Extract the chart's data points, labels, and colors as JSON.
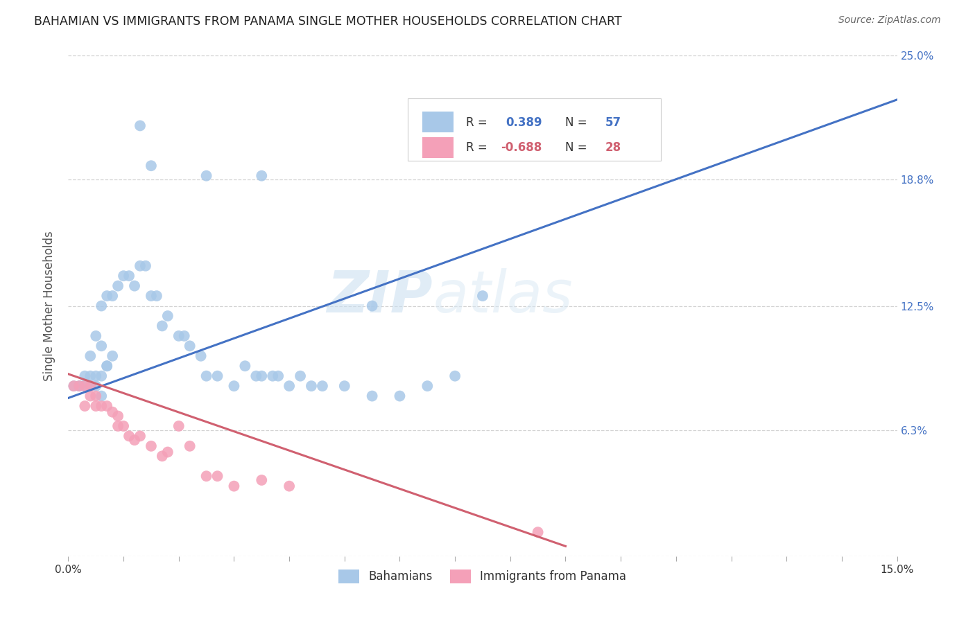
{
  "title": "BAHAMIAN VS IMMIGRANTS FROM PANAMA SINGLE MOTHER HOUSEHOLDS CORRELATION CHART",
  "source": "Source: ZipAtlas.com",
  "ylabel": "Single Mother Households",
  "legend_label1": "Bahamians",
  "legend_label2": "Immigrants from Panama",
  "r1": "0.389",
  "n1": "57",
  "r2": "-0.688",
  "n2": "28",
  "xlim": [
    0.0,
    0.15
  ],
  "ylim": [
    0.0,
    0.25
  ],
  "color_blue": "#a8c8e8",
  "color_pink": "#f4a0b8",
  "line_blue": "#4472c4",
  "line_pink": "#d06070",
  "background_color": "#ffffff",
  "grid_color": "#c8c8c8",
  "watermark_zip": "ZIP",
  "watermark_atlas": "atlas",
  "blue_line_x": [
    0.0,
    0.15
  ],
  "blue_line_y": [
    0.079,
    0.228
  ],
  "pink_line_x": [
    0.0,
    0.09
  ],
  "pink_line_y": [
    0.091,
    0.005
  ],
  "bahamian_x": [
    0.013,
    0.002,
    0.003,
    0.004,
    0.005,
    0.006,
    0.004,
    0.007,
    0.005,
    0.006,
    0.006,
    0.007,
    0.008,
    0.009,
    0.01,
    0.011,
    0.012,
    0.013,
    0.014,
    0.015,
    0.016,
    0.017,
    0.018,
    0.02,
    0.021,
    0.022,
    0.024,
    0.025,
    0.027,
    0.03,
    0.032,
    0.034,
    0.035,
    0.037,
    0.038,
    0.04,
    0.042,
    0.044,
    0.046,
    0.05,
    0.055,
    0.06,
    0.065,
    0.07,
    0.001,
    0.002,
    0.003,
    0.004,
    0.005,
    0.006,
    0.007,
    0.008,
    0.015,
    0.025,
    0.035,
    0.055,
    0.075
  ],
  "bahamian_y": [
    0.215,
    0.085,
    0.09,
    0.09,
    0.09,
    0.08,
    0.1,
    0.095,
    0.11,
    0.105,
    0.125,
    0.13,
    0.13,
    0.135,
    0.14,
    0.14,
    0.135,
    0.145,
    0.145,
    0.13,
    0.13,
    0.115,
    0.12,
    0.11,
    0.11,
    0.105,
    0.1,
    0.09,
    0.09,
    0.085,
    0.095,
    0.09,
    0.09,
    0.09,
    0.09,
    0.085,
    0.09,
    0.085,
    0.085,
    0.085,
    0.08,
    0.08,
    0.085,
    0.09,
    0.085,
    0.085,
    0.085,
    0.085,
    0.085,
    0.09,
    0.095,
    0.1,
    0.195,
    0.19,
    0.19,
    0.125,
    0.13
  ],
  "panama_x": [
    0.001,
    0.002,
    0.003,
    0.004,
    0.003,
    0.004,
    0.005,
    0.005,
    0.006,
    0.007,
    0.008,
    0.009,
    0.009,
    0.01,
    0.011,
    0.012,
    0.013,
    0.015,
    0.017,
    0.018,
    0.02,
    0.022,
    0.025,
    0.027,
    0.03,
    0.035,
    0.04,
    0.085
  ],
  "panama_y": [
    0.085,
    0.085,
    0.085,
    0.085,
    0.075,
    0.08,
    0.08,
    0.075,
    0.075,
    0.075,
    0.072,
    0.07,
    0.065,
    0.065,
    0.06,
    0.058,
    0.06,
    0.055,
    0.05,
    0.052,
    0.065,
    0.055,
    0.04,
    0.04,
    0.035,
    0.038,
    0.035,
    0.012
  ]
}
